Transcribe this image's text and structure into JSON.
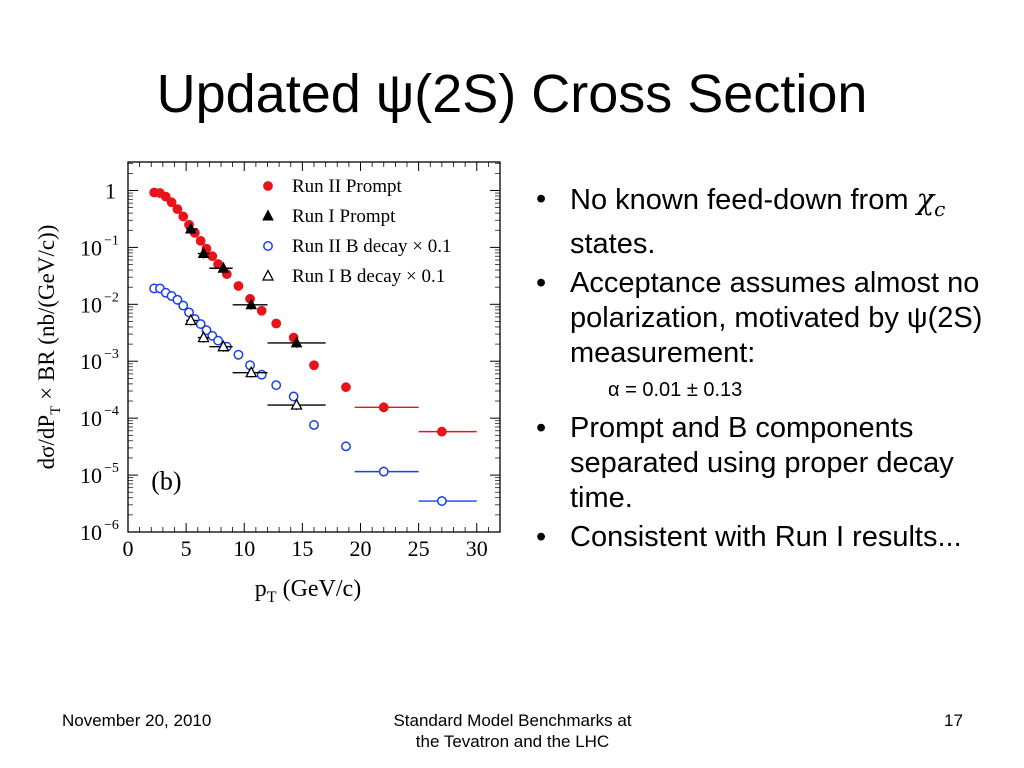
{
  "slide": {
    "title": "Updated ψ(2S) Cross Section",
    "bullets": [
      {
        "pre": "No known feed-down from ",
        "symbol": "χ",
        "symbol_sub": "c",
        "post": " states."
      },
      {
        "text": "Acceptance assumes almost no polarization, motivated by ψ(2S) measurement:"
      },
      {
        "text": "Prompt and B components separated using proper decay time."
      },
      {
        "text": "Consistent with Run I results..."
      }
    ],
    "sub_bullet": "α = 0.01 ± 0.13",
    "bullet_glyph": "•"
  },
  "footer": {
    "date": "November 20, 2010",
    "center_line1": "Standard Model Benchmarks at",
    "center_line2": "the Tevatron and the LHC",
    "page": "17"
  },
  "chart_data": {
    "type": "scatter",
    "title": "",
    "panel_label": "(b)",
    "xlabel": "p",
    "xlabel_sub": "T",
    "xlabel_unit": " (GeV/c)",
    "ylabel": "dσ/dP",
    "ylabel_sub": "T",
    "ylabel_rest": " × BR (nb/(GeV/c))",
    "xlim": [
      0,
      32
    ],
    "ylim_log10": [
      -6,
      0.5
    ],
    "y_scale": "log",
    "xticks": [
      0,
      5,
      10,
      15,
      20,
      25,
      30
    ],
    "xtick_labels": [
      "0",
      "5",
      "10",
      "15",
      "20",
      "25",
      "30"
    ],
    "yticks_log10": [
      0,
      -1,
      -2,
      -3,
      -4,
      -5,
      -6
    ],
    "ytick_labels": [
      {
        "base": "1",
        "exp": ""
      },
      {
        "base": "10",
        "exp": "−1"
      },
      {
        "base": "10",
        "exp": "−2"
      },
      {
        "base": "10",
        "exp": "−3"
      },
      {
        "base": "10",
        "exp": "−4"
      },
      {
        "base": "10",
        "exp": "−5"
      },
      {
        "base": "10",
        "exp": "−6"
      }
    ],
    "legend_position": "top-right",
    "series": [
      {
        "name": "Run II Prompt",
        "marker": "filled-circle",
        "color": "#e8141b",
        "points": [
          {
            "x": 2.25,
            "y": 0.92
          },
          {
            "x": 2.75,
            "y": 0.9
          },
          {
            "x": 3.25,
            "y": 0.78
          },
          {
            "x": 3.75,
            "y": 0.62
          },
          {
            "x": 4.25,
            "y": 0.47
          },
          {
            "x": 4.75,
            "y": 0.35
          },
          {
            "x": 5.25,
            "y": 0.25
          },
          {
            "x": 5.75,
            "y": 0.18
          },
          {
            "x": 6.25,
            "y": 0.13
          },
          {
            "x": 6.75,
            "y": 0.095
          },
          {
            "x": 7.25,
            "y": 0.07
          },
          {
            "x": 7.75,
            "y": 0.051
          },
          {
            "x": 8.5,
            "y": 0.034
          },
          {
            "x": 9.5,
            "y": 0.021
          },
          {
            "x": 10.5,
            "y": 0.0125
          },
          {
            "x": 11.5,
            "y": 0.0077
          },
          {
            "x": 12.75,
            "y": 0.0046
          },
          {
            "x": 14.25,
            "y": 0.0026
          },
          {
            "x": 16.0,
            "y": 0.00085
          },
          {
            "x": 18.75,
            "y": 0.00035
          },
          {
            "x": 22.0,
            "y": 0.000155,
            "xerr": [
              19.5,
              25.0
            ]
          },
          {
            "x": 27.0,
            "y": 5.8e-05,
            "xerr": [
              25.0,
              30.0
            ]
          }
        ]
      },
      {
        "name": "Run I  Prompt",
        "marker": "filled-triangle",
        "color": "#000000",
        "points": [
          {
            "x": 5.4,
            "y": 0.21,
            "xerr": [
              5.0,
              6.0
            ]
          },
          {
            "x": 6.5,
            "y": 0.078,
            "xerr": [
              6.0,
              7.0
            ]
          },
          {
            "x": 8.2,
            "y": 0.043,
            "xerr": [
              7.0,
              9.0
            ]
          },
          {
            "x": 10.6,
            "y": 0.0098,
            "xerr": [
              9.0,
              12.0
            ]
          },
          {
            "x": 14.5,
            "y": 0.0021,
            "xerr": [
              12.0,
              17.0
            ]
          }
        ]
      },
      {
        "name": "Run II B decay × 0.1",
        "marker": "open-circle",
        "color": "#1a3fe8",
        "points": [
          {
            "x": 2.25,
            "y": 0.019
          },
          {
            "x": 2.75,
            "y": 0.019
          },
          {
            "x": 3.25,
            "y": 0.016
          },
          {
            "x": 3.75,
            "y": 0.014
          },
          {
            "x": 4.25,
            "y": 0.012
          },
          {
            "x": 4.75,
            "y": 0.0095
          },
          {
            "x": 5.25,
            "y": 0.0072
          },
          {
            "x": 5.75,
            "y": 0.0055
          },
          {
            "x": 6.25,
            "y": 0.0045
          },
          {
            "x": 6.75,
            "y": 0.0035
          },
          {
            "x": 7.25,
            "y": 0.0028
          },
          {
            "x": 7.75,
            "y": 0.0023
          },
          {
            "x": 8.5,
            "y": 0.0018
          },
          {
            "x": 9.5,
            "y": 0.0013
          },
          {
            "x": 10.5,
            "y": 0.00085
          },
          {
            "x": 11.5,
            "y": 0.00058
          },
          {
            "x": 12.75,
            "y": 0.00038
          },
          {
            "x": 14.25,
            "y": 0.00024
          },
          {
            "x": 16.0,
            "y": 7.6e-05
          },
          {
            "x": 18.75,
            "y": 3.2e-05
          },
          {
            "x": 22.0,
            "y": 1.15e-05,
            "xerr": [
              19.5,
              25.0
            ]
          },
          {
            "x": 27.0,
            "y": 3.5e-06,
            "xerr": [
              25.0,
              30.0
            ]
          }
        ]
      },
      {
        "name": "Run I  B decay × 0.1",
        "marker": "open-triangle",
        "color": "#000000",
        "points": [
          {
            "x": 5.4,
            "y": 0.0052,
            "xerr": [
              5.0,
              6.0
            ]
          },
          {
            "x": 6.5,
            "y": 0.0026,
            "xerr": [
              6.0,
              7.0
            ]
          },
          {
            "x": 8.2,
            "y": 0.0018,
            "xerr": [
              7.0,
              9.0
            ]
          },
          {
            "x": 10.6,
            "y": 0.00063,
            "xerr": [
              9.0,
              12.0
            ]
          },
          {
            "x": 14.5,
            "y": 0.00017,
            "xerr": [
              12.0,
              17.0
            ]
          }
        ]
      }
    ]
  }
}
